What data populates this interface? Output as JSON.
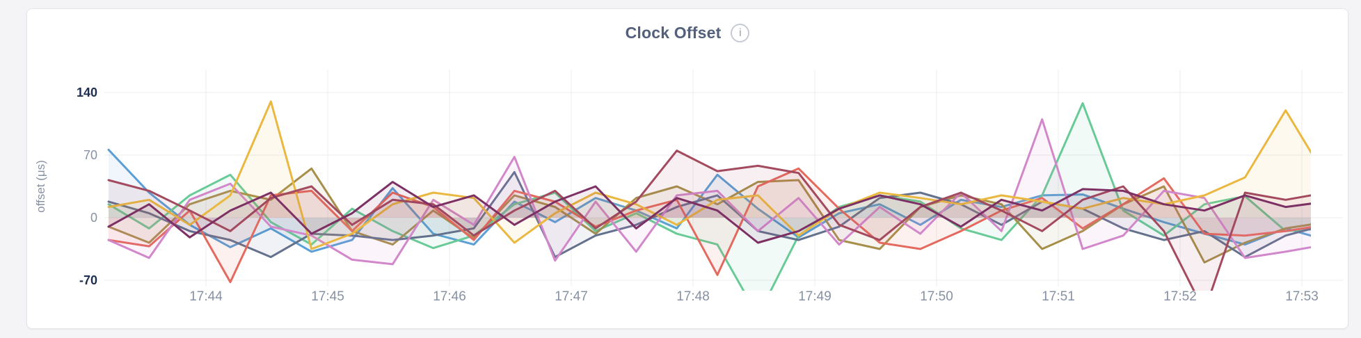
{
  "page": {
    "background_color": "#f4f4f6",
    "card_background": "#ffffff"
  },
  "header": {
    "title": "Clock Offset",
    "info_icon_glyph": "i"
  },
  "chart_data": {
    "type": "line",
    "title": "Clock Offset",
    "xlabel": "",
    "ylabel": "offset (μs)",
    "legend": "none",
    "grid": true,
    "y_axis": {
      "units": "μs",
      "visible_range": [
        -82,
        148
      ],
      "ticks": [
        {
          "label": "140",
          "value": 140,
          "emphasis": true
        },
        {
          "label": "70",
          "value": 70,
          "emphasis": false
        },
        {
          "label": "0",
          "value": 0,
          "emphasis": false
        },
        {
          "label": "-70",
          "value": -70,
          "emphasis": true
        }
      ],
      "emphasis_color": "#1e2e4f",
      "normal_color": "#8691a3"
    },
    "x_axis": {
      "start_time": "17:43:12",
      "point_interval_seconds": 20,
      "tick_labels": [
        "17:44",
        "17:45",
        "17:46",
        "17:47",
        "17:48",
        "17:49",
        "17:50",
        "17:51",
        "17:52",
        "17:53"
      ],
      "tick_seconds": [
        48,
        108,
        168,
        228,
        288,
        348,
        408,
        468,
        528,
        588
      ]
    },
    "series": [
      {
        "name": "blue",
        "color": "#5b9fd6",
        "values": [
          76,
          28,
          -8,
          -33,
          -12,
          -38,
          -25,
          33,
          -18,
          -30,
          18,
          -5,
          22,
          8,
          -12,
          48,
          10,
          -22,
          5,
          15,
          -8,
          20,
          12,
          25,
          26,
          10,
          -5,
          -18,
          -30,
          -12,
          -25
        ]
      },
      {
        "name": "green",
        "color": "#68cb97",
        "values": [
          15,
          -12,
          25,
          48,
          -5,
          -30,
          10,
          -15,
          -34,
          -20,
          15,
          28,
          -15,
          5,
          -18,
          -30,
          -110,
          -20,
          12,
          25,
          18,
          -12,
          -25,
          25,
          128,
          8,
          -20,
          15,
          24,
          -15,
          -12
        ]
      },
      {
        "name": "olive",
        "color": "#a68f4a",
        "values": [
          -10,
          -28,
          15,
          30,
          20,
          55,
          -15,
          -30,
          8,
          -23,
          25,
          12,
          -18,
          22,
          35,
          15,
          40,
          42,
          -25,
          -35,
          12,
          25,
          15,
          -35,
          -15,
          15,
          35,
          -50,
          -28,
          -12,
          -5
        ]
      },
      {
        "name": "slate",
        "color": "#64718d",
        "values": [
          18,
          5,
          -15,
          -25,
          -44,
          -18,
          -20,
          -25,
          -20,
          -12,
          51,
          -44,
          -20,
          -8,
          12,
          25,
          -15,
          -25,
          -10,
          22,
          28,
          15,
          -8,
          18,
          10,
          -12,
          -25,
          -15,
          -44,
          -20,
          -8
        ]
      },
      {
        "name": "salmon",
        "color": "#e4695e",
        "values": [
          -25,
          -32,
          8,
          -72,
          25,
          30,
          -15,
          28,
          12,
          -25,
          30,
          18,
          -10,
          8,
          20,
          -64,
          35,
          55,
          10,
          -28,
          -35,
          -15,
          8,
          22,
          -12,
          15,
          44,
          -18,
          -20,
          -15,
          -8
        ]
      },
      {
        "name": "orchid",
        "color": "#d287cb",
        "values": [
          -25,
          -45,
          20,
          38,
          -10,
          -20,
          -47,
          -52,
          20,
          -8,
          68,
          -48,
          18,
          -38,
          25,
          30,
          -15,
          22,
          -30,
          12,
          -18,
          28,
          -15,
          110,
          -35,
          -20,
          30,
          22,
          -45,
          -38,
          -30
        ]
      },
      {
        "name": "gold",
        "color": "#eab840",
        "values": [
          12,
          20,
          -8,
          25,
          130,
          -35,
          -18,
          15,
          28,
          22,
          -28,
          5,
          28,
          15,
          -8,
          20,
          25,
          -20,
          10,
          28,
          22,
          15,
          25,
          18,
          10,
          22,
          15,
          25,
          45,
          120,
          45
        ]
      },
      {
        "name": "wine",
        "color": "#a34a5f",
        "values": [
          42,
          30,
          8,
          -15,
          22,
          35,
          -8,
          20,
          15,
          -20,
          8,
          30,
          -12,
          18,
          75,
          52,
          58,
          50,
          -8,
          -25,
          12,
          28,
          8,
          -15,
          20,
          35,
          -15,
          -105,
          28,
          20,
          28
        ]
      },
      {
        "name": "plum",
        "color": "#7c3064",
        "values": [
          -10,
          15,
          -22,
          8,
          28,
          -18,
          5,
          40,
          12,
          25,
          -8,
          18,
          35,
          -12,
          22,
          8,
          -28,
          -15,
          10,
          25,
          15,
          -10,
          20,
          8,
          32,
          30,
          15,
          8,
          25,
          12,
          18
        ]
      }
    ]
  }
}
